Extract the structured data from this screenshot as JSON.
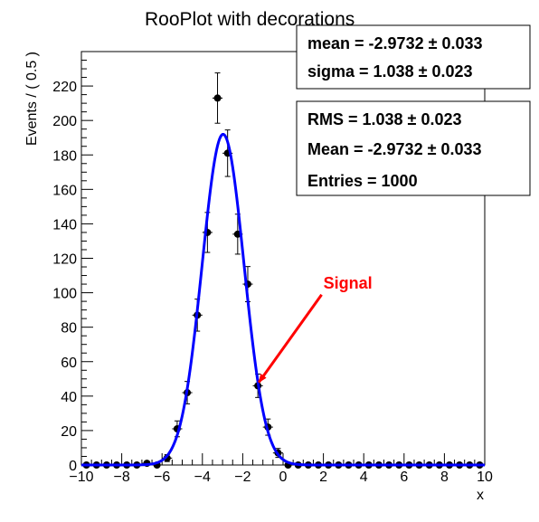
{
  "chart_data": {
    "type": "scatter",
    "title": "RooPlot with decorations",
    "xlabel": "x",
    "ylabel": "Events / ( 0.5 )",
    "xlim": [
      -10,
      10
    ],
    "ylim": [
      0,
      240
    ],
    "x_ticks": [
      -10,
      -8,
      -6,
      -4,
      -2,
      0,
      2,
      4,
      6,
      8,
      10
    ],
    "y_ticks": [
      0,
      20,
      40,
      60,
      80,
      100,
      120,
      140,
      160,
      180,
      200,
      220
    ],
    "x": [
      -9.75,
      -9.25,
      -8.75,
      -8.25,
      -7.75,
      -7.25,
      -6.75,
      -6.25,
      -5.75,
      -5.25,
      -4.75,
      -4.25,
      -3.75,
      -3.25,
      -2.75,
      -2.25,
      -1.75,
      -1.25,
      -0.75,
      -0.25,
      0.25,
      0.75,
      1.25,
      1.75,
      2.25,
      2.75,
      3.25,
      3.75,
      4.25,
      4.75,
      5.25,
      5.75,
      6.25,
      6.75,
      7.25,
      7.75,
      8.25,
      8.75,
      9.25,
      9.75
    ],
    "series": [
      {
        "values": [
          0,
          0,
          0,
          0,
          0,
          0,
          1,
          0,
          4,
          21,
          42,
          87,
          135,
          213,
          181,
          134,
          105,
          46,
          22,
          7,
          0,
          0,
          0,
          0,
          0,
          0,
          0,
          0,
          0,
          0,
          0,
          0,
          0,
          0,
          0,
          0,
          0,
          0,
          0,
          0
        ],
        "errors": [
          0,
          0,
          0,
          0,
          0,
          0,
          1,
          0,
          2,
          4.6,
          6.5,
          9.3,
          11.6,
          14.6,
          13.5,
          11.6,
          10.2,
          6.8,
          4.7,
          2.6,
          0,
          0,
          0,
          0,
          0,
          0,
          0,
          0,
          0,
          0,
          0,
          0,
          0,
          0,
          0,
          0,
          0,
          0,
          0,
          0
        ]
      }
    ],
    "fit": {
      "type": "gaussian",
      "mean": -2.9732,
      "sigma": 1.038,
      "amplitude": 192,
      "color": "#0000ff"
    },
    "stats_boxes": [
      {
        "lines": [
          "mean = -2.9732 ± 0.033",
          "sigma =  1.038 ± 0.023"
        ]
      },
      {
        "lines": [
          "RMS =  1.038 ± 0.023",
          "Mean = -2.9732 ± 0.033",
          "Entries =  1000"
        ]
      }
    ],
    "annotation": {
      "text": "Signal",
      "color": "#ff0000",
      "arrow_to": [
        -1.2,
        48
      ],
      "label_at": [
        2.0,
        102
      ]
    },
    "grid": false,
    "marker_color": "#000000"
  }
}
